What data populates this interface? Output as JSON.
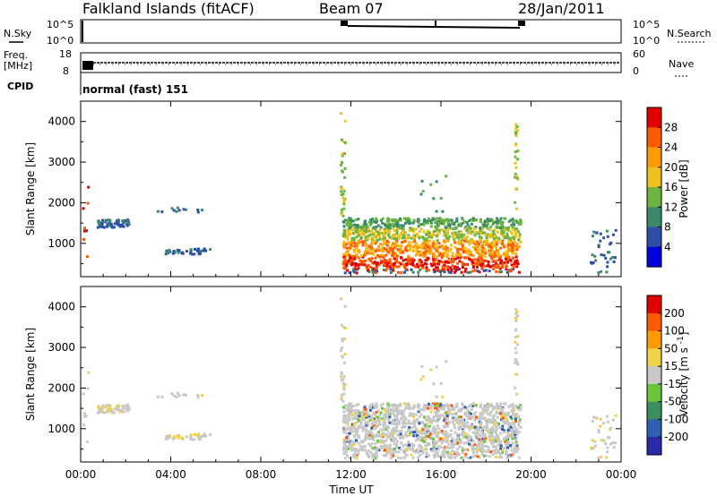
{
  "header": {
    "station": "Falkland Islands (fitACF)",
    "beam": "Beam 07",
    "date": "28/Jan/2011"
  },
  "top_panels": {
    "nsky_label": "N.Sky",
    "nsky_ticks": [
      "10^5",
      "10^0"
    ],
    "nsearch_label": "N.Search",
    "nsearch_ticks": [
      "10^5",
      "10^0"
    ],
    "freq_label": "Freq.",
    "freq_unit": "[MHz]",
    "freq_ticks": [
      "18",
      "8"
    ],
    "nave_label": "Nave",
    "nave_ticks": [
      "60",
      "0"
    ],
    "cpid_label": "CPID",
    "cpid_value": "normal (fast) 151"
  },
  "colors": {
    "power_scale": [
      "#0000dd",
      "#2e4fa8",
      "#3b8a6a",
      "#6db33f",
      "#f0c020",
      "#ff9a00",
      "#ff5a00",
      "#e00000"
    ],
    "velocity_scale": [
      "#2a2aa8",
      "#2e5fb0",
      "#3a8f5e",
      "#6cc43a",
      "#c8c8c8",
      "#f0d24a",
      "#ff9a00",
      "#ff5a00",
      "#e00000"
    ],
    "ground_scatter": "#a0a0a0"
  },
  "chart_data": [
    {
      "type": "heatmap",
      "panel": "power",
      "ylabel": "Slant Range [km]",
      "xlabel": "",
      "ylim": [
        180,
        4500
      ],
      "xlim": [
        0,
        24
      ],
      "yticks": [
        "4000",
        "3000",
        "2000",
        "1000"
      ],
      "colorbar_label": "Power [dB]",
      "colorbar_ticks": [
        "28",
        "24",
        "20",
        "16",
        "12",
        "8",
        "4"
      ],
      "colorbar_range": [
        0,
        32
      ],
      "regions": [
        {
          "t0": 0.7,
          "t1": 2.1,
          "r0": 1420,
          "r1": 1620,
          "level": 1
        },
        {
          "t0": 3.6,
          "t1": 5.8,
          "r0": 780,
          "r1": 900,
          "level": 1
        },
        {
          "t0": 11.6,
          "t1": 19.5,
          "r0": 300,
          "r1": 1650,
          "level": 5
        },
        {
          "t0": 22.5,
          "t1": 23.8,
          "r0": 300,
          "r1": 1400,
          "level": 1
        }
      ]
    },
    {
      "type": "heatmap",
      "panel": "velocity",
      "ylabel": "Slant Range [km]",
      "xlabel": "Time UT",
      "ylim": [
        180,
        4500
      ],
      "xlim": [
        0,
        24
      ],
      "xticks": [
        "00:00",
        "04:00",
        "08:00",
        "12:00",
        "16:00",
        "20:00",
        "00:00"
      ],
      "yticks": [
        "4000",
        "3000",
        "2000",
        "1000"
      ],
      "colorbar_label": "Velocity [m s^-1]",
      "colorbar_ticks": [
        "200",
        "100",
        "50",
        "15",
        "-15",
        "-50",
        "-100",
        "-200"
      ],
      "colorbar_range": [
        -250,
        250
      ]
    }
  ]
}
